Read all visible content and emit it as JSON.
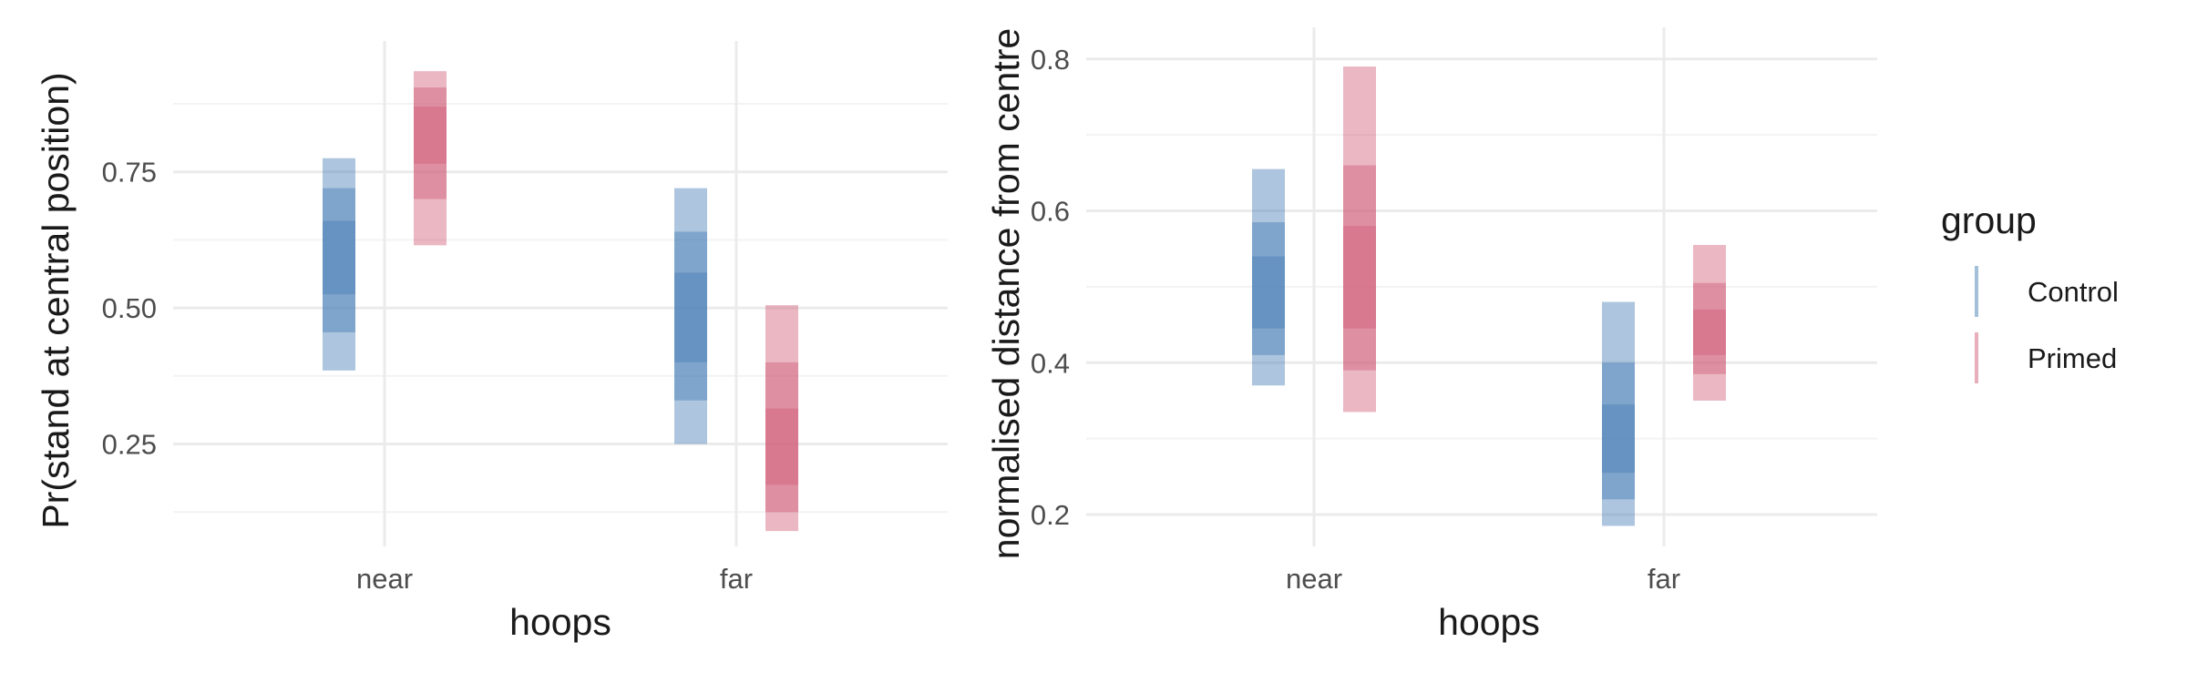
{
  "chart_data": [
    {
      "type": "interval",
      "xlabel": "hoops",
      "ylabel": "Pr(stand at central position)",
      "categories": [
        "near",
        "far"
      ],
      "ylim": [
        0.09,
        0.95
      ],
      "yticks": [
        0.25,
        0.5,
        0.75
      ],
      "ytick_labels": [
        "0.25",
        "0.50",
        "0.75"
      ],
      "grid": true,
      "series": [
        {
          "name": "Control",
          "intervals": [
            [
              [
                0.385,
                0.775
              ],
              [
                0.455,
                0.72
              ],
              [
                0.525,
                0.66
              ]
            ],
            [
              [
                0.25,
                0.72
              ],
              [
                0.33,
                0.64
              ],
              [
                0.4,
                0.565
              ]
            ]
          ]
        },
        {
          "name": "Primed",
          "intervals": [
            [
              [
                0.615,
                0.935
              ],
              [
                0.7,
                0.905
              ],
              [
                0.765,
                0.87
              ]
            ],
            [
              [
                0.09,
                0.505
              ],
              [
                0.125,
                0.4
              ],
              [
                0.175,
                0.315
              ]
            ]
          ]
        }
      ]
    },
    {
      "type": "interval",
      "xlabel": "hoops",
      "ylabel": "normalised distance from centre",
      "categories": [
        "near",
        "far"
      ],
      "ylim": [
        0.185,
        0.79
      ],
      "yticks": [
        0.2,
        0.4,
        0.6,
        0.8
      ],
      "ytick_labels": [
        "0.2",
        "0.4",
        "0.6",
        "0.8"
      ],
      "grid": true,
      "series": [
        {
          "name": "Control",
          "intervals": [
            [
              [
                0.37,
                0.655
              ],
              [
                0.41,
                0.585
              ],
              [
                0.445,
                0.54
              ]
            ],
            [
              [
                0.185,
                0.48
              ],
              [
                0.22,
                0.4
              ],
              [
                0.255,
                0.345
              ]
            ]
          ]
        },
        {
          "name": "Primed",
          "intervals": [
            [
              [
                0.335,
                0.79
              ],
              [
                0.39,
                0.66
              ],
              [
                0.445,
                0.58
              ]
            ],
            [
              [
                0.35,
                0.555
              ],
              [
                0.385,
                0.505
              ],
              [
                0.41,
                0.47
              ]
            ]
          ]
        }
      ]
    }
  ],
  "legend": {
    "title": "group",
    "position": "right",
    "items": [
      {
        "label": "Control",
        "color": "#4a7fb5"
      },
      {
        "label": "Primed",
        "color": "#d0607a"
      }
    ]
  },
  "colors": {
    "Control": "#4a7fb5",
    "Primed": "#d0607a"
  }
}
